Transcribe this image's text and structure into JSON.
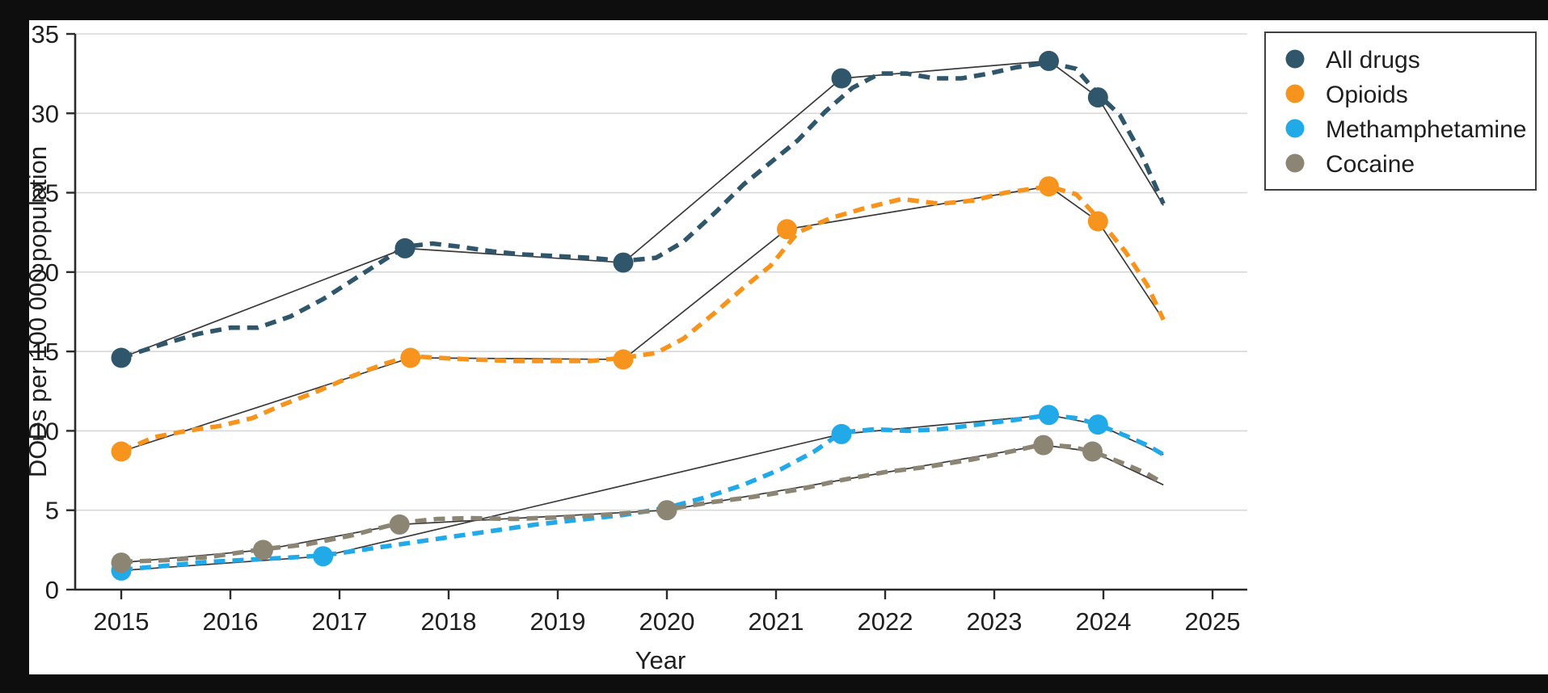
{
  "page": {
    "background": "#0e0e0e",
    "panel_background": "#ffffff"
  },
  "chart_data": {
    "type": "line",
    "title": "",
    "xlabel": "Year",
    "ylabel": "DODs per 100 000 population",
    "xlim": [
      2014.58,
      2025.32
    ],
    "ylim": [
      0,
      35
    ],
    "x_ticks": [
      2015,
      2016,
      2017,
      2018,
      2019,
      2020,
      2021,
      2022,
      2023,
      2024,
      2025
    ],
    "y_ticks": [
      0,
      5,
      10,
      15,
      20,
      25,
      30,
      35
    ],
    "grid": "horizontal-only",
    "legend_position": "top-right",
    "colors": {
      "axis": "#2b2b2b",
      "grid": "#d8d8d8",
      "fit_line": "#3a3a3a",
      "text": "#1f1f1f",
      "legend_border": "#3f3f3f"
    },
    "series": [
      {
        "name": "All drugs",
        "color": "#2F566A",
        "joinpoints": [
          [
            2015.0,
            14.6
          ],
          [
            2017.6,
            21.5
          ],
          [
            2019.6,
            20.6
          ],
          [
            2021.6,
            32.2
          ],
          [
            2023.5,
            33.3
          ],
          [
            2023.95,
            31.0
          ]
        ],
        "fit_extension": [
          2024.55,
          24.2
        ],
        "observed": [
          [
            2015,
            14.6
          ],
          [
            2015.35,
            15.4
          ],
          [
            2015.7,
            16.1
          ],
          [
            2016.0,
            16.5
          ],
          [
            2016.25,
            16.5
          ],
          [
            2016.55,
            17.2
          ],
          [
            2016.85,
            18.3
          ],
          [
            2017.1,
            19.4
          ],
          [
            2017.35,
            20.5
          ],
          [
            2017.6,
            21.6
          ],
          [
            2017.85,
            21.8
          ],
          [
            2018.1,
            21.6
          ],
          [
            2018.4,
            21.3
          ],
          [
            2018.7,
            21.1
          ],
          [
            2019.0,
            21.0
          ],
          [
            2019.3,
            20.9
          ],
          [
            2019.6,
            20.7
          ],
          [
            2019.9,
            20.9
          ],
          [
            2020.15,
            21.9
          ],
          [
            2020.45,
            23.8
          ],
          [
            2020.7,
            25.5
          ],
          [
            2020.95,
            26.9
          ],
          [
            2021.2,
            28.3
          ],
          [
            2021.45,
            30.1
          ],
          [
            2021.7,
            31.6
          ],
          [
            2021.95,
            32.5
          ],
          [
            2022.2,
            32.5
          ],
          [
            2022.45,
            32.2
          ],
          [
            2022.7,
            32.2
          ],
          [
            2022.95,
            32.5
          ],
          [
            2023.2,
            32.9
          ],
          [
            2023.5,
            33.2
          ],
          [
            2023.75,
            32.8
          ],
          [
            2023.95,
            31.2
          ],
          [
            2024.15,
            29.9
          ],
          [
            2024.35,
            27.4
          ],
          [
            2024.55,
            24.3
          ]
        ]
      },
      {
        "name": "Opioids",
        "color": "#F7941D",
        "joinpoints": [
          [
            2015.0,
            8.7
          ],
          [
            2017.65,
            14.6
          ],
          [
            2019.6,
            14.5
          ],
          [
            2021.1,
            22.7
          ],
          [
            2023.5,
            25.4
          ],
          [
            2023.95,
            23.2
          ]
        ],
        "fit_extension": [
          2024.55,
          17.0
        ],
        "observed": [
          [
            2015,
            8.7
          ],
          [
            2015.3,
            9.6
          ],
          [
            2015.6,
            10.0
          ],
          [
            2015.9,
            10.3
          ],
          [
            2016.2,
            10.8
          ],
          [
            2016.5,
            11.7
          ],
          [
            2016.8,
            12.5
          ],
          [
            2017.1,
            13.4
          ],
          [
            2017.4,
            14.2
          ],
          [
            2017.65,
            14.7
          ],
          [
            2017.9,
            14.6
          ],
          [
            2018.2,
            14.5
          ],
          [
            2018.6,
            14.4
          ],
          [
            2019.0,
            14.4
          ],
          [
            2019.3,
            14.4
          ],
          [
            2019.6,
            14.6
          ],
          [
            2019.9,
            14.9
          ],
          [
            2020.15,
            15.8
          ],
          [
            2020.45,
            17.5
          ],
          [
            2020.7,
            19.0
          ],
          [
            2020.95,
            20.4
          ],
          [
            2021.2,
            22.5
          ],
          [
            2021.5,
            23.4
          ],
          [
            2021.8,
            24.0
          ],
          [
            2022.15,
            24.6
          ],
          [
            2022.5,
            24.3
          ],
          [
            2022.8,
            24.5
          ],
          [
            2023.1,
            25.0
          ],
          [
            2023.5,
            25.4
          ],
          [
            2023.75,
            24.9
          ],
          [
            2023.95,
            23.4
          ],
          [
            2024.2,
            21.3
          ],
          [
            2024.4,
            19.2
          ],
          [
            2024.55,
            17.0
          ]
        ]
      },
      {
        "name": "Methamphetamine",
        "color": "#21A9E8",
        "joinpoints": [
          [
            2015.0,
            1.2
          ],
          [
            2016.85,
            2.1
          ],
          [
            2021.6,
            9.8
          ],
          [
            2023.5,
            11.0
          ],
          [
            2023.95,
            10.4
          ]
        ],
        "fit_extension": [
          2024.55,
          8.5
        ],
        "observed": [
          [
            2015,
            1.25
          ],
          [
            2015.4,
            1.5
          ],
          [
            2015.8,
            1.75
          ],
          [
            2016.2,
            1.9
          ],
          [
            2016.5,
            2.0
          ],
          [
            2016.85,
            2.15
          ],
          [
            2017.2,
            2.5
          ],
          [
            2017.6,
            2.9
          ],
          [
            2018.0,
            3.3
          ],
          [
            2018.4,
            3.7
          ],
          [
            2018.8,
            4.1
          ],
          [
            2019.2,
            4.4
          ],
          [
            2019.6,
            4.7
          ],
          [
            2020.0,
            5.15
          ],
          [
            2020.35,
            5.8
          ],
          [
            2020.7,
            6.6
          ],
          [
            2021.05,
            7.6
          ],
          [
            2021.35,
            8.7
          ],
          [
            2021.6,
            9.9
          ],
          [
            2021.9,
            10.1
          ],
          [
            2022.2,
            10.0
          ],
          [
            2022.5,
            10.1
          ],
          [
            2022.85,
            10.4
          ],
          [
            2023.2,
            10.7
          ],
          [
            2023.5,
            11.0
          ],
          [
            2023.75,
            10.8
          ],
          [
            2023.95,
            10.4
          ],
          [
            2024.2,
            9.7
          ],
          [
            2024.4,
            9.1
          ],
          [
            2024.55,
            8.5
          ]
        ]
      },
      {
        "name": "Cocaine",
        "color": "#8D8574",
        "joinpoints": [
          [
            2015.0,
            1.7
          ],
          [
            2016.3,
            2.5
          ],
          [
            2017.55,
            4.1
          ],
          [
            2020.0,
            5.0
          ],
          [
            2023.45,
            9.1
          ],
          [
            2023.9,
            8.7
          ]
        ],
        "fit_extension": [
          2024.55,
          6.6
        ],
        "observed": [
          [
            2015,
            1.75
          ],
          [
            2015.4,
            1.85
          ],
          [
            2015.8,
            2.05
          ],
          [
            2016.3,
            2.55
          ],
          [
            2016.7,
            2.85
          ],
          [
            2017.1,
            3.4
          ],
          [
            2017.55,
            4.2
          ],
          [
            2017.9,
            4.45
          ],
          [
            2018.2,
            4.5
          ],
          [
            2018.6,
            4.45
          ],
          [
            2019.0,
            4.55
          ],
          [
            2019.4,
            4.7
          ],
          [
            2019.7,
            4.85
          ],
          [
            2020.0,
            5.05
          ],
          [
            2020.4,
            5.5
          ],
          [
            2020.8,
            5.85
          ],
          [
            2021.2,
            6.3
          ],
          [
            2021.6,
            6.9
          ],
          [
            2022.0,
            7.4
          ],
          [
            2022.4,
            7.75
          ],
          [
            2022.8,
            8.2
          ],
          [
            2023.15,
            8.7
          ],
          [
            2023.45,
            9.15
          ],
          [
            2023.7,
            9.0
          ],
          [
            2023.9,
            8.7
          ],
          [
            2024.2,
            7.9
          ],
          [
            2024.4,
            7.3
          ],
          [
            2024.55,
            6.7
          ]
        ]
      }
    ]
  }
}
